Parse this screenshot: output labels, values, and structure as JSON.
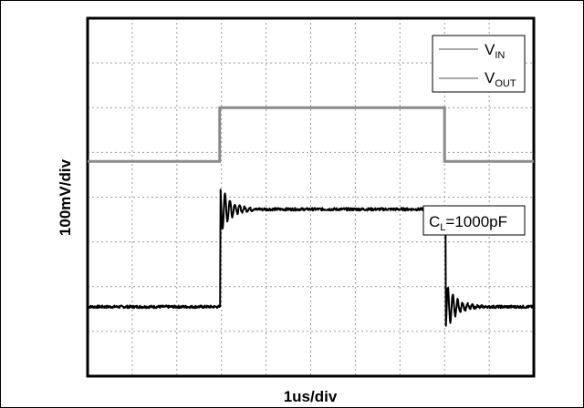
{
  "chart_data": {
    "type": "line",
    "title": "",
    "xlabel": "1us/div",
    "ylabel": "100mV/div",
    "grid": true,
    "legend_position": "top-right",
    "xlim": [
      0,
      10
    ],
    "ylim": [
      0,
      8
    ],
    "x_units": "div",
    "y_units": "div",
    "annotation": {
      "main": "C",
      "sub": "L",
      "rest": "=1000pF"
    },
    "series": [
      {
        "name": "V_IN",
        "label_main": "V",
        "label_sub": "IN",
        "color": "#8a8a8a",
        "x": [
          0.0,
          2.96,
          2.96,
          8.0,
          8.0,
          10.0
        ],
        "values": [
          4.8,
          4.8,
          6.0,
          6.0,
          4.8,
          4.8
        ]
      },
      {
        "name": "V_OUT",
        "label_main": "V",
        "label_sub": "OUT",
        "color": "#000000",
        "baseline_low": 1.55,
        "high": 3.73,
        "rise_x": 2.97,
        "fall_x": 8.02,
        "end_x": 10.0,
        "ring_overshoot_div": 0.55,
        "ring_period_div": 0.11,
        "ring_decay_div": 0.22,
        "noise_div": 0.03
      }
    ]
  }
}
